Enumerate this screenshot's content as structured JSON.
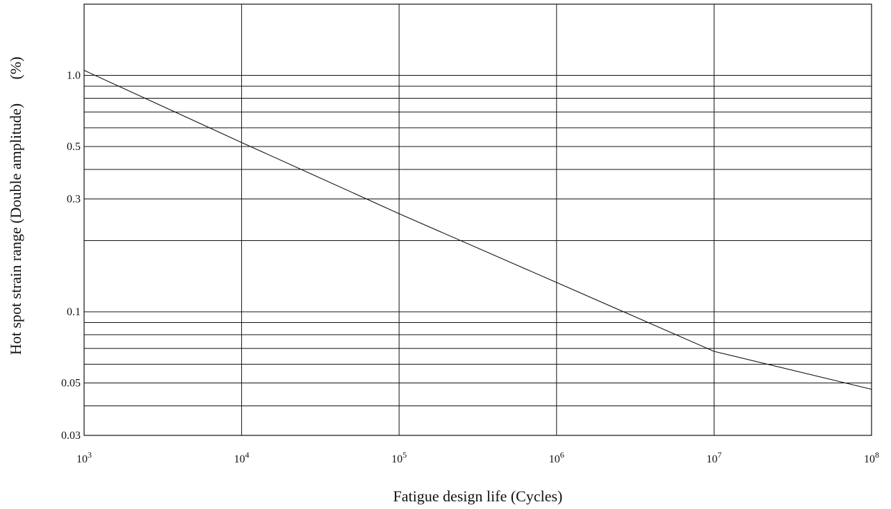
{
  "chart_data": {
    "type": "line",
    "title": "",
    "xlabel": "Fatigue design life (Cycles)",
    "ylabel": "Hot spot strain range (Double amplitude)",
    "ylabel_unit": "(%)",
    "x_scale": "log",
    "y_scale": "log",
    "xlim": [
      1000,
      100000000
    ],
    "ylim": [
      0.03,
      2.0
    ],
    "grid": true,
    "legend": "none",
    "x_ticks": [
      {
        "value": 1000,
        "base": "10",
        "exp": "3"
      },
      {
        "value": 10000,
        "base": "10",
        "exp": "4"
      },
      {
        "value": 100000,
        "base": "10",
        "exp": "5"
      },
      {
        "value": 1000000,
        "base": "10",
        "exp": "6"
      },
      {
        "value": 10000000,
        "base": "10",
        "exp": "7"
      },
      {
        "value": 100000000,
        "base": "10",
        "exp": "8"
      }
    ],
    "y_ticks": [
      {
        "value": 1.0,
        "label": "1.0"
      },
      {
        "value": 0.5,
        "label": "0.5"
      },
      {
        "value": 0.3,
        "label": "0.3"
      },
      {
        "value": 0.1,
        "label": "0.1"
      },
      {
        "value": 0.05,
        "label": "0.05"
      },
      {
        "value": 0.03,
        "label": "0.03"
      }
    ],
    "y_gridlines": [
      1.0,
      0.9,
      0.8,
      0.7,
      0.6,
      0.5,
      0.4,
      0.3,
      0.2,
      0.1,
      0.09,
      0.08,
      0.07,
      0.06,
      0.05,
      0.04
    ],
    "series": [
      {
        "x": [
          1000,
          10000,
          100000,
          1000000,
          10000000,
          100000000
        ],
        "y": [
          1.05,
          0.52,
          0.26,
          0.133,
          0.068,
          0.047
        ]
      }
    ],
    "colors": {
      "line": "#111111",
      "grid": "#111111",
      "background": "#ffffff"
    }
  }
}
